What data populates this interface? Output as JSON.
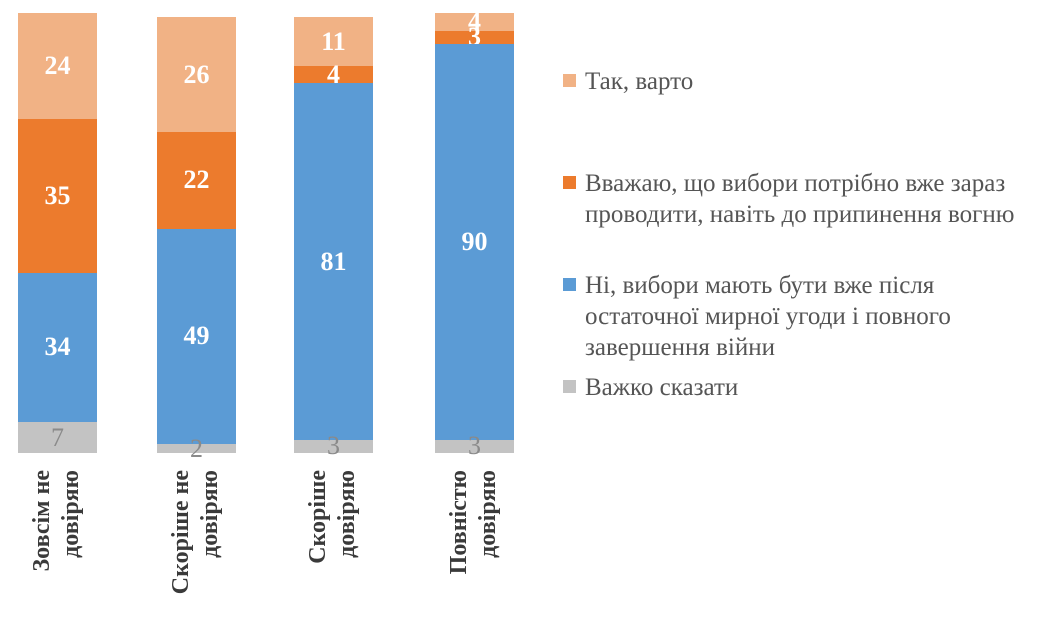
{
  "chart_data": {
    "type": "bar",
    "stacked": true,
    "orientation": "vertical",
    "title": "",
    "xlabel": "",
    "ylabel": "",
    "ylim": [
      0,
      100
    ],
    "grid": false,
    "axis_lines": "hidden",
    "legend_position": "right",
    "categories": [
      {
        "lines": [
          "Зовсім не",
          "довіряю"
        ]
      },
      {
        "lines": [
          "Скоріше не",
          "довіряю"
        ]
      },
      {
        "lines": [
          "Скоріше",
          "довіряю"
        ]
      },
      {
        "lines": [
          "Повністю",
          "довіряю"
        ]
      }
    ],
    "series": [
      {
        "name": "Так, варто",
        "color": "#f1b285",
        "label_color": "#ffffff",
        "label_weight": 700,
        "values": [
          24,
          26,
          11,
          4
        ]
      },
      {
        "name": "Вважаю, що вибори потрібно вже зараз проводити, навіть до припинення вогню",
        "color": "#ec7b2d",
        "label_color": "#ffffff",
        "label_weight": 700,
        "values": [
          35,
          22,
          4,
          3
        ]
      },
      {
        "name": "Ні, вибори мають бути вже після остаточної мирної угоди і повного завершення війни",
        "color": "#5b9bd5",
        "label_color": "#ffffff",
        "label_weight": 700,
        "values": [
          34,
          49,
          81,
          90
        ]
      },
      {
        "name": "Важко сказати",
        "color": "#c3c3c3",
        "label_color": "#8a8a8a",
        "label_weight": 400,
        "values": [
          7,
          2,
          3,
          3
        ]
      }
    ],
    "stack_order_top_to_bottom": [
      "Так, варто",
      "Вважаю, що вибори потрібно вже зараз проводити, навіть до припинення вогню",
      "Ні, вибори мають бути вже після остаточної мирної угоди і повного завершення війни",
      "Важко сказати"
    ]
  }
}
